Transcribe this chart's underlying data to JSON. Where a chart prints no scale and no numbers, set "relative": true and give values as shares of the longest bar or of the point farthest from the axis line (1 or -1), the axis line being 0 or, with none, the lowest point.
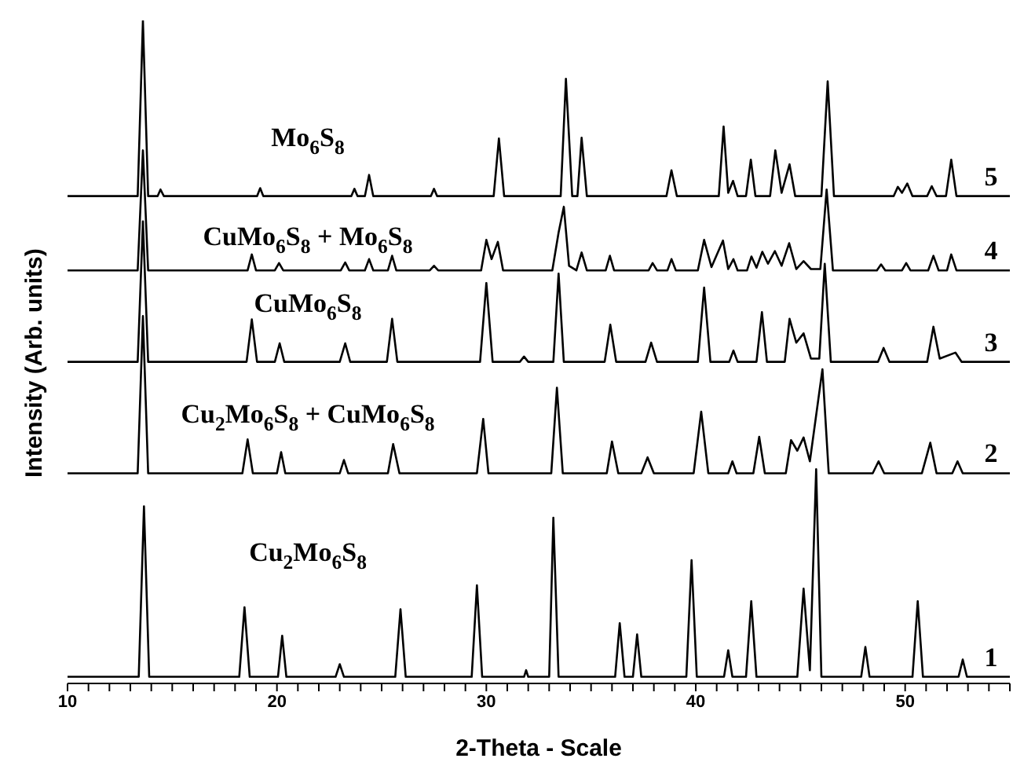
{
  "chart_data": {
    "type": "line",
    "relative": true,
    "xlabel": "2-Theta - Scale",
    "ylabel": "Intensity (Arb. units)",
    "xlim": [
      10,
      55
    ],
    "xticks": [
      10,
      {
        "value": 11,
        "label": null
      },
      {
        "value": 12,
        "label": null
      },
      {
        "value": 13,
        "label": null
      },
      {
        "value": 14,
        "label": null
      },
      {
        "value": 15,
        "label": null
      },
      {
        "value": 16,
        "label": null
      },
      {
        "value": 17,
        "label": null
      },
      {
        "value": 18,
        "label": null
      },
      {
        "value": 19,
        "label": null
      },
      20,
      {
        "value": 21,
        "label": null
      },
      {
        "value": 22,
        "label": null
      },
      {
        "value": 23,
        "label": null
      },
      {
        "value": 24,
        "label": null
      },
      {
        "value": 25,
        "label": null
      },
      {
        "value": 26,
        "label": null
      },
      {
        "value": 27,
        "label": null
      },
      {
        "value": 28,
        "label": null
      },
      {
        "value": 29,
        "label": null
      },
      30,
      {
        "value": 31,
        "label": null
      },
      {
        "value": 32,
        "label": null
      },
      {
        "value": 33,
        "label": null
      },
      {
        "value": 34,
        "label": null
      },
      {
        "value": 35,
        "label": null
      },
      {
        "value": 36,
        "label": null
      },
      {
        "value": 37,
        "label": null
      },
      {
        "value": 38,
        "label": null
      },
      {
        "value": 39,
        "label": null
      },
      40,
      {
        "value": 41,
        "label": null
      },
      {
        "value": 42,
        "label": null
      },
      {
        "value": 43,
        "label": null
      },
      {
        "value": 44,
        "label": null
      },
      {
        "value": 45,
        "label": null
      },
      {
        "value": 46,
        "label": null
      },
      {
        "value": 47,
        "label": null
      },
      {
        "value": 48,
        "label": null
      },
      {
        "value": 49,
        "label": null
      },
      50,
      {
        "value": 51,
        "label": null
      },
      {
        "value": 52,
        "label": null
      },
      {
        "value": 53,
        "label": null
      },
      {
        "value": 54,
        "label": null
      },
      {
        "value": 55,
        "label": null
      }
    ],
    "grid": false,
    "legend": false,
    "marker": "none",
    "line_style": "solid",
    "series": [
      {
        "name": "Cu$_{2}$Mo$_{6}$S$_{8}$",
        "color": "#000000",
        "x": [
          10,
          13.4,
          13.65,
          13.9,
          18.2,
          18.45,
          18.7,
          20.05,
          20.25,
          20.45,
          22.8,
          23.0,
          23.2,
          25.65,
          25.9,
          26.15,
          29.3,
          29.55,
          29.8,
          31.8,
          31.9,
          32.0,
          33.0,
          33.2,
          33.45,
          36.15,
          36.37,
          36.6,
          37.0,
          37.2,
          37.4,
          39.55,
          39.8,
          40.05,
          41.35,
          41.55,
          41.75,
          42.4,
          42.65,
          42.9,
          44.85,
          45.15,
          45.45,
          45.75,
          46.0,
          47.9,
          48.1,
          48.3,
          50.35,
          50.6,
          50.85,
          52.55,
          52.75,
          52.95,
          55
        ],
        "values": [
          0.01,
          0.01,
          0.267,
          0.01,
          0.01,
          0.115,
          0.01,
          0.01,
          0.072,
          0.01,
          0.01,
          0.029,
          0.01,
          0.01,
          0.112,
          0.01,
          0.01,
          0.148,
          0.01,
          0.01,
          0.02,
          0.01,
          0.01,
          0.25,
          0.01,
          0.01,
          0.091,
          0.01,
          0.01,
          0.074,
          0.01,
          0.01,
          0.186,
          0.01,
          0.01,
          0.05,
          0.01,
          0.01,
          0.124,
          0.01,
          0.01,
          0.143,
          0.02,
          0.323,
          0.01,
          0.01,
          0.055,
          0.01,
          0.01,
          0.124,
          0.01,
          0.01,
          0.036,
          0.01,
          0.01
        ]
      },
      {
        "name": "Cu$_{2}$Mo$_{6}$S$_{8}$ + CuMo$_{6}$S$_{8}$",
        "color": "#000000",
        "x": [
          10,
          13.35,
          13.6,
          13.85,
          18.35,
          18.6,
          18.85,
          20.0,
          20.2,
          20.4,
          23.0,
          23.2,
          23.4,
          25.3,
          25.55,
          25.85,
          29.55,
          29.85,
          30.1,
          33.1,
          33.37,
          33.65,
          35.75,
          36.0,
          36.3,
          37.4,
          37.7,
          38.0,
          39.9,
          40.26,
          40.6,
          41.55,
          41.75,
          41.95,
          42.75,
          43.03,
          43.3,
          44.3,
          44.55,
          44.85,
          45.15,
          45.45,
          46.05,
          46.35,
          48.45,
          48.73,
          49.0,
          50.8,
          51.2,
          51.5,
          52.25,
          52.5,
          52.75,
          55
        ],
        "values": [
          0.317,
          0.317,
          0.554,
          0.317,
          0.317,
          0.368,
          0.317,
          0.317,
          0.349,
          0.317,
          0.317,
          0.337,
          0.317,
          0.317,
          0.361,
          0.317,
          0.317,
          0.399,
          0.317,
          0.317,
          0.446,
          0.317,
          0.317,
          0.365,
          0.317,
          0.317,
          0.341,
          0.317,
          0.317,
          0.41,
          0.317,
          0.317,
          0.335,
          0.317,
          0.317,
          0.372,
          0.317,
          0.317,
          0.367,
          0.351,
          0.371,
          0.335,
          0.474,
          0.317,
          0.317,
          0.335,
          0.317,
          0.317,
          0.363,
          0.317,
          0.317,
          0.335,
          0.317,
          0.317
        ]
      },
      {
        "name": "CuMo$_{6}$S$_{8}$",
        "color": "#000000",
        "x": [
          10,
          13.35,
          13.6,
          13.85,
          18.55,
          18.8,
          19.05,
          19.9,
          20.13,
          20.35,
          23.0,
          23.26,
          23.5,
          25.25,
          25.5,
          25.75,
          29.7,
          30.0,
          30.3,
          31.6,
          31.8,
          32.0,
          33.2,
          33.45,
          33.7,
          35.65,
          35.92,
          36.2,
          37.6,
          37.87,
          38.15,
          40.1,
          40.4,
          40.7,
          41.6,
          41.8,
          42.0,
          42.9,
          43.16,
          43.4,
          44.25,
          44.48,
          44.8,
          45.15,
          45.5,
          45.9,
          46.16,
          46.45,
          48.7,
          48.97,
          49.25,
          51.05,
          51.35,
          51.65,
          52.4,
          52.7,
          55
        ],
        "values": [
          0.485,
          0.485,
          0.697,
          0.485,
          0.485,
          0.549,
          0.485,
          0.485,
          0.513,
          0.485,
          0.485,
          0.513,
          0.485,
          0.485,
          0.55,
          0.485,
          0.485,
          0.604,
          0.485,
          0.485,
          0.493,
          0.485,
          0.485,
          0.618,
          0.485,
          0.485,
          0.541,
          0.485,
          0.485,
          0.514,
          0.485,
          0.485,
          0.597,
          0.485,
          0.485,
          0.502,
          0.485,
          0.485,
          0.56,
          0.485,
          0.485,
          0.55,
          0.514,
          0.528,
          0.49,
          0.49,
          0.633,
          0.485,
          0.485,
          0.506,
          0.485,
          0.485,
          0.538,
          0.49,
          0.499,
          0.485,
          0.485
        ]
      },
      {
        "name": "CuMo$_{6}$S$_{8}$ + Mo$_{6}$S$_{8}$",
        "color": "#000000",
        "x": [
          10,
          13.35,
          13.6,
          13.85,
          18.6,
          18.8,
          19.0,
          19.9,
          20.1,
          20.3,
          23.05,
          23.26,
          23.45,
          24.2,
          24.4,
          24.6,
          25.3,
          25.5,
          25.7,
          27.3,
          27.5,
          27.7,
          29.75,
          30.0,
          30.25,
          30.55,
          30.8,
          33.15,
          33.45,
          33.7,
          33.95,
          34.3,
          34.55,
          34.8,
          35.7,
          35.9,
          36.1,
          37.75,
          37.94,
          38.15,
          38.65,
          38.84,
          39.05,
          40.1,
          40.4,
          40.75,
          41.3,
          41.55,
          41.8,
          42.0,
          42.45,
          42.66,
          42.9,
          43.18,
          43.45,
          43.78,
          44.1,
          44.46,
          44.8,
          45.15,
          45.5,
          45.95,
          46.25,
          46.55,
          48.65,
          48.85,
          49.05,
          49.85,
          50.05,
          50.25,
          51.1,
          51.35,
          51.6,
          52.0,
          52.2,
          52.45,
          55
        ],
        "values": [
          0.623,
          0.623,
          0.804,
          0.623,
          0.623,
          0.647,
          0.623,
          0.623,
          0.634,
          0.623,
          0.623,
          0.635,
          0.623,
          0.623,
          0.64,
          0.623,
          0.623,
          0.645,
          0.623,
          0.623,
          0.63,
          0.623,
          0.623,
          0.669,
          0.64,
          0.666,
          0.623,
          0.623,
          0.68,
          0.719,
          0.63,
          0.623,
          0.65,
          0.623,
          0.623,
          0.645,
          0.623,
          0.623,
          0.634,
          0.623,
          0.623,
          0.64,
          0.623,
          0.623,
          0.669,
          0.628,
          0.668,
          0.625,
          0.64,
          0.623,
          0.623,
          0.644,
          0.627,
          0.651,
          0.633,
          0.652,
          0.63,
          0.664,
          0.625,
          0.637,
          0.625,
          0.625,
          0.745,
          0.623,
          0.623,
          0.632,
          0.623,
          0.623,
          0.634,
          0.623,
          0.623,
          0.645,
          0.623,
          0.623,
          0.647,
          0.623,
          0.623
        ]
      },
      {
        "name": "Mo$_{6}$S$_{8}$",
        "color": "#000000",
        "x": [
          10,
          13.35,
          13.6,
          13.85,
          14.3,
          14.44,
          14.6,
          19.05,
          19.2,
          19.35,
          23.55,
          23.7,
          23.85,
          24.2,
          24.4,
          24.6,
          27.35,
          27.5,
          27.65,
          30.35,
          30.6,
          30.85,
          33.55,
          33.8,
          34.1,
          34.35,
          34.55,
          34.8,
          38.6,
          38.84,
          39.1,
          41.1,
          41.33,
          41.55,
          41.78,
          42.0,
          42.4,
          42.63,
          42.85,
          43.55,
          43.8,
          44.1,
          44.48,
          44.75,
          46.0,
          46.3,
          46.6,
          49.45,
          49.65,
          49.85,
          50.1,
          50.35,
          51.05,
          51.27,
          51.5,
          51.95,
          52.2,
          52.45,
          55
        ],
        "values": [
          0.735,
          0.735,
          1,
          0.735,
          0.735,
          0.745,
          0.735,
          0.735,
          0.747,
          0.735,
          0.735,
          0.746,
          0.735,
          0.735,
          0.767,
          0.735,
          0.735,
          0.746,
          0.735,
          0.735,
          0.822,
          0.735,
          0.735,
          0.912,
          0.735,
          0.735,
          0.823,
          0.735,
          0.735,
          0.774,
          0.735,
          0.735,
          0.84,
          0.74,
          0.758,
          0.735,
          0.735,
          0.79,
          0.735,
          0.735,
          0.804,
          0.74,
          0.783,
          0.735,
          0.735,
          0.908,
          0.735,
          0.735,
          0.749,
          0.74,
          0.754,
          0.735,
          0.735,
          0.75,
          0.735,
          0.735,
          0.79,
          0.735,
          0.735
        ]
      }
    ],
    "annotations": [
      "1",
      "2",
      "3",
      "4",
      "5"
    ]
  }
}
